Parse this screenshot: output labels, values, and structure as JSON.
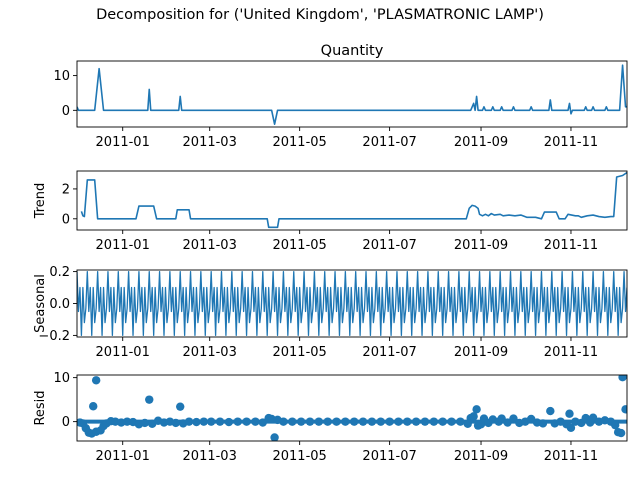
{
  "chart_data": {
    "type": "line",
    "title": "Decomposition for ('United Kingdom', 'PLASMATRONIC LAMP')",
    "x_range": [
      "2010-12-01",
      "2011-12-09"
    ],
    "x_ticks": [
      "2011-01-01",
      "2011-03-01",
      "2011-05-01",
      "2011-07-01",
      "2011-09-01",
      "2011-11-01"
    ],
    "x_tick_labels": [
      "2011-01",
      "2011-03",
      "2011-05",
      "2011-07",
      "2011-09",
      "2011-11"
    ],
    "line_color": "#1f77b4",
    "panels": [
      {
        "name": "observed",
        "title": "Quantity",
        "ylabel": "",
        "ylim": [
          -4.8,
          14.2
        ],
        "yticks": [
          0,
          10
        ],
        "kind": "line",
        "points": [
          [
            "2010-12-01",
            1
          ],
          [
            "2010-12-02",
            0
          ],
          [
            "2010-12-13",
            0
          ],
          [
            "2010-12-16",
            12
          ],
          [
            "2010-12-19",
            0
          ],
          [
            "2011-01-18",
            0
          ],
          [
            "2011-01-19",
            6
          ],
          [
            "2011-01-20",
            0
          ],
          [
            "2011-02-08",
            0
          ],
          [
            "2011-02-09",
            4
          ],
          [
            "2011-02-10",
            0
          ],
          [
            "2011-04-12",
            0
          ],
          [
            "2011-04-14",
            -4
          ],
          [
            "2011-04-16",
            0
          ],
          [
            "2011-08-25",
            0
          ],
          [
            "2011-08-27",
            2
          ],
          [
            "2011-08-28",
            0
          ],
          [
            "2011-08-29",
            4
          ],
          [
            "2011-08-30",
            0
          ],
          [
            "2011-09-02",
            0
          ],
          [
            "2011-09-03",
            1
          ],
          [
            "2011-09-04",
            0
          ],
          [
            "2011-09-08",
            0
          ],
          [
            "2011-09-09",
            1
          ],
          [
            "2011-09-10",
            0
          ],
          [
            "2011-09-14",
            0
          ],
          [
            "2011-09-15",
            1
          ],
          [
            "2011-09-16",
            0
          ],
          [
            "2011-09-22",
            0
          ],
          [
            "2011-09-23",
            1
          ],
          [
            "2011-09-24",
            0
          ],
          [
            "2011-10-04",
            0
          ],
          [
            "2011-10-05",
            1
          ],
          [
            "2011-10-06",
            0
          ],
          [
            "2011-10-17",
            0
          ],
          [
            "2011-10-18",
            3
          ],
          [
            "2011-10-19",
            0
          ],
          [
            "2011-10-30",
            0
          ],
          [
            "2011-10-31",
            2
          ],
          [
            "2011-11-01",
            -1
          ],
          [
            "2011-11-02",
            0
          ],
          [
            "2011-11-10",
            0
          ],
          [
            "2011-11-11",
            1
          ],
          [
            "2011-11-12",
            0
          ],
          [
            "2011-11-15",
            0
          ],
          [
            "2011-11-16",
            1
          ],
          [
            "2011-11-17",
            0
          ],
          [
            "2011-11-24",
            0
          ],
          [
            "2011-11-25",
            1
          ],
          [
            "2011-11-26",
            0
          ],
          [
            "2011-12-04",
            0
          ],
          [
            "2011-12-06",
            13
          ],
          [
            "2011-12-08",
            1
          ],
          [
            "2011-12-09",
            1
          ]
        ]
      },
      {
        "name": "trend",
        "title": "",
        "ylabel": "Trend",
        "ylim": [
          -0.75,
          3.2
        ],
        "yticks": [
          0,
          2
        ],
        "kind": "line",
        "points": [
          [
            "2010-12-04",
            0.5
          ],
          [
            "2010-12-05",
            0.2
          ],
          [
            "2010-12-06",
            0.15
          ],
          [
            "2010-12-08",
            2.6
          ],
          [
            "2010-12-12",
            2.6
          ],
          [
            "2010-12-13",
            2.6
          ],
          [
            "2010-12-15",
            0
          ],
          [
            "2011-01-10",
            0
          ],
          [
            "2011-01-12",
            0.85
          ],
          [
            "2011-01-22",
            0.85
          ],
          [
            "2011-01-24",
            0
          ],
          [
            "2011-02-06",
            0
          ],
          [
            "2011-02-07",
            0.6
          ],
          [
            "2011-02-15",
            0.6
          ],
          [
            "2011-02-16",
            0
          ],
          [
            "2011-04-09",
            0
          ],
          [
            "2011-04-10",
            -0.57
          ],
          [
            "2011-04-16",
            -0.57
          ],
          [
            "2011-04-17",
            0
          ],
          [
            "2011-08-22",
            0
          ],
          [
            "2011-08-24",
            0.7
          ],
          [
            "2011-08-26",
            0.9
          ],
          [
            "2011-08-28",
            0.85
          ],
          [
            "2011-08-30",
            0.7
          ],
          [
            "2011-08-31",
            0.3
          ],
          [
            "2011-09-02",
            0.2
          ],
          [
            "2011-09-04",
            0.3
          ],
          [
            "2011-09-06",
            0.2
          ],
          [
            "2011-09-08",
            0.35
          ],
          [
            "2011-09-10",
            0.25
          ],
          [
            "2011-09-14",
            0.3
          ],
          [
            "2011-09-16",
            0.2
          ],
          [
            "2011-09-20",
            0.25
          ],
          [
            "2011-09-24",
            0.2
          ],
          [
            "2011-09-28",
            0.25
          ],
          [
            "2011-10-02",
            0.1
          ],
          [
            "2011-10-08",
            0.1
          ],
          [
            "2011-10-12",
            0
          ],
          [
            "2011-10-14",
            0.45
          ],
          [
            "2011-10-22",
            0.45
          ],
          [
            "2011-10-24",
            0
          ],
          [
            "2011-10-28",
            0
          ],
          [
            "2011-10-30",
            0.3
          ],
          [
            "2011-11-04",
            0.2
          ],
          [
            "2011-11-06",
            0.2
          ],
          [
            "2011-11-08",
            0.1
          ],
          [
            "2011-11-12",
            0.2
          ],
          [
            "2011-11-16",
            0.25
          ],
          [
            "2011-11-20",
            0.15
          ],
          [
            "2011-11-24",
            0.1
          ],
          [
            "2011-11-28",
            0.15
          ],
          [
            "2011-11-30",
            0.15
          ],
          [
            "2011-12-02",
            2.8
          ],
          [
            "2011-12-06",
            2.9
          ],
          [
            "2011-12-09",
            3.1
          ]
        ]
      },
      {
        "name": "seasonal",
        "title": "",
        "ylabel": "Seasonal",
        "ylim": [
          -0.21,
          0.21
        ],
        "yticks": [
          -0.2,
          0.0,
          0.2
        ],
        "ytick_labels": [
          "−0.2",
          "0.0",
          "0.2"
        ],
        "kind": "periodic",
        "period_days": 7,
        "start": "2010-12-01",
        "end": "2011-12-09",
        "cycle": [
          0.2,
          -0.05,
          0.1,
          -0.2,
          0.1,
          -0.12,
          -0.03
        ]
      },
      {
        "name": "resid",
        "title": "",
        "ylabel": "Resid",
        "ylim": [
          -4.4,
          10.6
        ],
        "yticks": [
          0,
          10
        ],
        "kind": "scatter",
        "baseline": 0,
        "points": [
          [
            "2010-12-03",
            -0.2
          ],
          [
            "2010-12-05",
            -0.4
          ],
          [
            "2010-12-07",
            -1.5
          ],
          [
            "2010-12-09",
            -2.5
          ],
          [
            "2010-12-11",
            -2.7
          ],
          [
            "2010-12-12",
            3.5
          ],
          [
            "2010-12-14",
            9.4
          ],
          [
            "2010-12-14",
            -2.3
          ],
          [
            "2010-12-17",
            -2.0
          ],
          [
            "2010-12-19",
            -1.0
          ],
          [
            "2010-12-21",
            -0.4
          ],
          [
            "2010-12-24",
            0.1
          ],
          [
            "2010-12-27",
            0
          ],
          [
            "2010-12-31",
            -0.2
          ],
          [
            "2011-01-04",
            0
          ],
          [
            "2011-01-08",
            -0.1
          ],
          [
            "2011-01-12",
            -0.6
          ],
          [
            "2011-01-16",
            -0.3
          ],
          [
            "2011-01-19",
            5.0
          ],
          [
            "2011-01-21",
            -0.5
          ],
          [
            "2011-01-25",
            0.2
          ],
          [
            "2011-01-29",
            -0.2
          ],
          [
            "2011-02-02",
            0
          ],
          [
            "2011-02-06",
            -0.3
          ],
          [
            "2011-02-09",
            3.4
          ],
          [
            "2011-02-11",
            -0.4
          ],
          [
            "2011-02-15",
            0
          ],
          [
            "2011-02-20",
            -0.1
          ],
          [
            "2011-02-25",
            0
          ],
          [
            "2011-03-02",
            0
          ],
          [
            "2011-03-08",
            0
          ],
          [
            "2011-03-14",
            -0.1
          ],
          [
            "2011-03-20",
            0
          ],
          [
            "2011-03-26",
            0
          ],
          [
            "2011-04-01",
            0
          ],
          [
            "2011-04-06",
            -0.2
          ],
          [
            "2011-04-10",
            0.8
          ],
          [
            "2011-04-12",
            0.6
          ],
          [
            "2011-04-14",
            -3.6
          ],
          [
            "2011-04-16",
            0.4
          ],
          [
            "2011-04-20",
            0
          ],
          [
            "2011-04-26",
            0
          ],
          [
            "2011-05-02",
            0
          ],
          [
            "2011-05-08",
            0
          ],
          [
            "2011-05-14",
            0
          ],
          [
            "2011-05-20",
            0
          ],
          [
            "2011-05-26",
            0
          ],
          [
            "2011-06-01",
            0
          ],
          [
            "2011-06-07",
            0
          ],
          [
            "2011-06-13",
            0
          ],
          [
            "2011-06-19",
            0
          ],
          [
            "2011-06-25",
            0
          ],
          [
            "2011-07-01",
            0
          ],
          [
            "2011-07-07",
            0
          ],
          [
            "2011-07-13",
            0
          ],
          [
            "2011-07-19",
            0
          ],
          [
            "2011-07-25",
            0
          ],
          [
            "2011-07-31",
            0
          ],
          [
            "2011-08-06",
            0
          ],
          [
            "2011-08-12",
            0
          ],
          [
            "2011-08-18",
            0
          ],
          [
            "2011-08-23",
            -0.5
          ],
          [
            "2011-08-25",
            0.8
          ],
          [
            "2011-08-27",
            1.2
          ],
          [
            "2011-08-29",
            2.8
          ],
          [
            "2011-08-30",
            -0.9
          ],
          [
            "2011-09-01",
            -0.6
          ],
          [
            "2011-09-03",
            0.7
          ],
          [
            "2011-09-06",
            -0.3
          ],
          [
            "2011-09-09",
            0.5
          ],
          [
            "2011-09-13",
            0
          ],
          [
            "2011-09-15",
            0.7
          ],
          [
            "2011-09-19",
            -0.2
          ],
          [
            "2011-09-23",
            0.7
          ],
          [
            "2011-09-27",
            -0.3
          ],
          [
            "2011-10-01",
            0
          ],
          [
            "2011-10-05",
            0.6
          ],
          [
            "2011-10-09",
            -0.2
          ],
          [
            "2011-10-13",
            -0.4
          ],
          [
            "2011-10-18",
            2.4
          ],
          [
            "2011-10-21",
            -0.4
          ],
          [
            "2011-10-25",
            0
          ],
          [
            "2011-10-29",
            -0.6
          ],
          [
            "2011-10-31",
            1.8
          ],
          [
            "2011-11-01",
            -1.4
          ],
          [
            "2011-11-04",
            0
          ],
          [
            "2011-11-08",
            -0.3
          ],
          [
            "2011-11-11",
            0.8
          ],
          [
            "2011-11-14",
            -0.2
          ],
          [
            "2011-11-16",
            0.9
          ],
          [
            "2011-11-20",
            0
          ],
          [
            "2011-11-24",
            0.3
          ],
          [
            "2011-11-28",
            0
          ],
          [
            "2011-12-01",
            -0.8
          ],
          [
            "2011-12-03",
            -2.4
          ],
          [
            "2011-12-05",
            -2.6
          ],
          [
            "2011-12-06",
            10.1
          ],
          [
            "2011-12-08",
            2.8
          ]
        ]
      }
    ]
  }
}
